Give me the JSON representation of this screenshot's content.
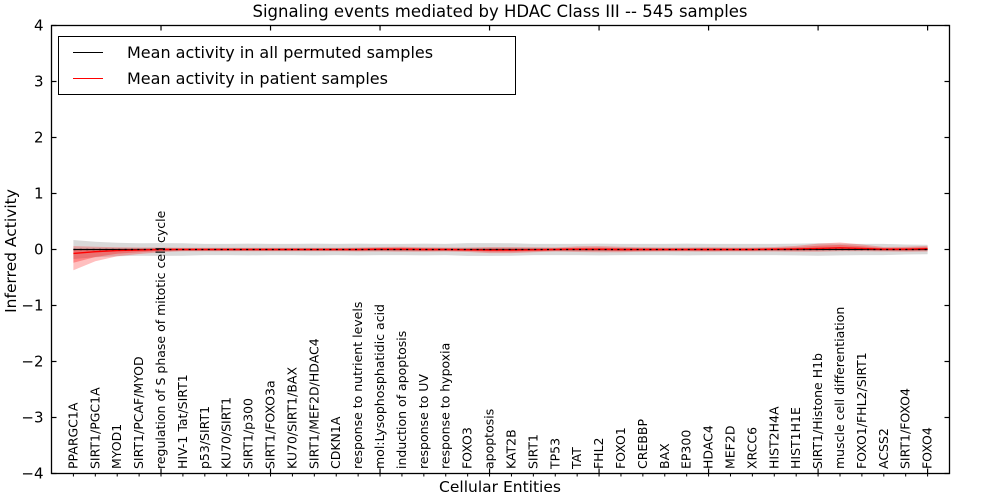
{
  "title": "Signaling events mediated by HDAC Class III -- 545 samples",
  "legend": {
    "entries": [
      {
        "label": "Mean activity in all permuted samples",
        "color": "#000000"
      },
      {
        "label": "Mean activity in patient samples",
        "color": "#ff0000"
      }
    ]
  },
  "chart_data": {
    "type": "line",
    "title": "Signaling events mediated by HDAC Class III -- 545 samples",
    "xlabel": "Cellular Entities",
    "ylabel": "Inferred Activity",
    "ylim": [
      -4,
      4
    ],
    "yticks": [
      4,
      3,
      2,
      1,
      0,
      -1,
      -2,
      -3,
      -4
    ],
    "x_major_tick_indices": [
      4,
      9,
      14,
      19,
      24,
      29,
      34,
      39
    ],
    "grid": false,
    "legend_position": "upper left",
    "categories": [
      "PPARGC1A",
      "SIRT1/PGC1A",
      "MYOD1",
      "SIRT1/PCAF/MYOD",
      "regulation of S phase of mitotic cell cycle",
      "HIV-1 Tat/SIRT1",
      "p53/SIRT1",
      "KU70/SIRT1",
      "SIRT1/p300",
      "SIRT1/FOXO3a",
      "KU70/SIRT1/BAX",
      "SIRT1/MEF2D/HDAC4",
      "CDKN1A",
      "response to nutrient levels",
      "mol:Lysophosphatidic acid",
      "induction of apoptosis",
      "response to UV",
      "response to hypoxia",
      "FOXO3",
      "apoptosis",
      "KAT2B",
      "SIRT1",
      "TP53",
      "TAT",
      "FHL2",
      "FOXO1",
      "CREBBP",
      "BAX",
      "EP300",
      "HDAC4",
      "MEF2D",
      "XRCC6",
      "HIST2H4A",
      "HIST1H1E",
      "SIRT1/Histone H1b",
      "muscle cell differentiation",
      "FOXO1/FHL2/SIRT1",
      "ACSS2",
      "SIRT1/FOXO4",
      "FOXO4"
    ],
    "series": [
      {
        "name": "Mean activity in all permuted samples",
        "color": "#000000",
        "band_color": "rgba(0,0,0,0.15)",
        "values": [
          0,
          0,
          0,
          0,
          0,
          0,
          0,
          0,
          0,
          0,
          0,
          0,
          0,
          0,
          0,
          0,
          0,
          0,
          0,
          0,
          0,
          0,
          0,
          0,
          0,
          0,
          0,
          0,
          0,
          0,
          0,
          0,
          0,
          0,
          0,
          0,
          0,
          0,
          0,
          0
        ],
        "band_half_width": [
          0.17,
          0.14,
          0.12,
          0.11,
          0.115,
          0.11,
          0.1,
          0.1,
          0.105,
          0.1,
          0.1,
          0.105,
          0.1,
          0.105,
          0.1,
          0.1,
          0.105,
          0.1,
          0.115,
          0.115,
          0.11,
          0.1,
          0.1,
          0.1,
          0.105,
          0.1,
          0.1,
          0.1,
          0.105,
          0.1,
          0.1,
          0.1,
          0.1,
          0.105,
          0.11,
          0.105,
          0.1,
          0.1,
          0.09,
          0.085
        ]
      },
      {
        "name": "Mean activity in patient samples",
        "color": "#ff0000",
        "band_color": "rgba(255,0,0,0.25)",
        "values": [
          -0.07,
          -0.04,
          -0.02,
          -0.01,
          0,
          0,
          0,
          0,
          0,
          0,
          0,
          0,
          0,
          0,
          0.005,
          0.005,
          0,
          0,
          -0.005,
          -0.01,
          -0.01,
          -0.005,
          0,
          0.005,
          0.005,
          0,
          0,
          0,
          0,
          0,
          0,
          0,
          0.005,
          0.01,
          0.02,
          0.03,
          0.02,
          0.005,
          0.005,
          0.015
        ],
        "band_upper": [
          0.13,
          0.09,
          0.06,
          0.045,
          0.035,
          0.03,
          0.03,
          0.03,
          0.03,
          0.03,
          0.03,
          0.03,
          0.03,
          0.035,
          0.04,
          0.045,
          0.04,
          0.035,
          0.04,
          0.055,
          0.055,
          0.045,
          0.035,
          0.05,
          0.055,
          0.05,
          0.04,
          0.035,
          0.035,
          0.04,
          0.035,
          0.035,
          0.04,
          0.055,
          0.085,
          0.095,
          0.07,
          0.04,
          0.045,
          0.05
        ],
        "band_lower": [
          0.3,
          0.17,
          0.1,
          0.07,
          0.05,
          0.03,
          0.03,
          0.03,
          0.03,
          0.03,
          0.03,
          0.03,
          0.03,
          0.035,
          0.04,
          0.045,
          0.04,
          0.035,
          0.04,
          0.055,
          0.055,
          0.045,
          0.035,
          0.05,
          0.055,
          0.05,
          0.04,
          0.035,
          0.035,
          0.04,
          0.035,
          0.035,
          0.04,
          0.05,
          0.06,
          0.06,
          0.05,
          0.04,
          0.045,
          0.05
        ]
      }
    ]
  }
}
